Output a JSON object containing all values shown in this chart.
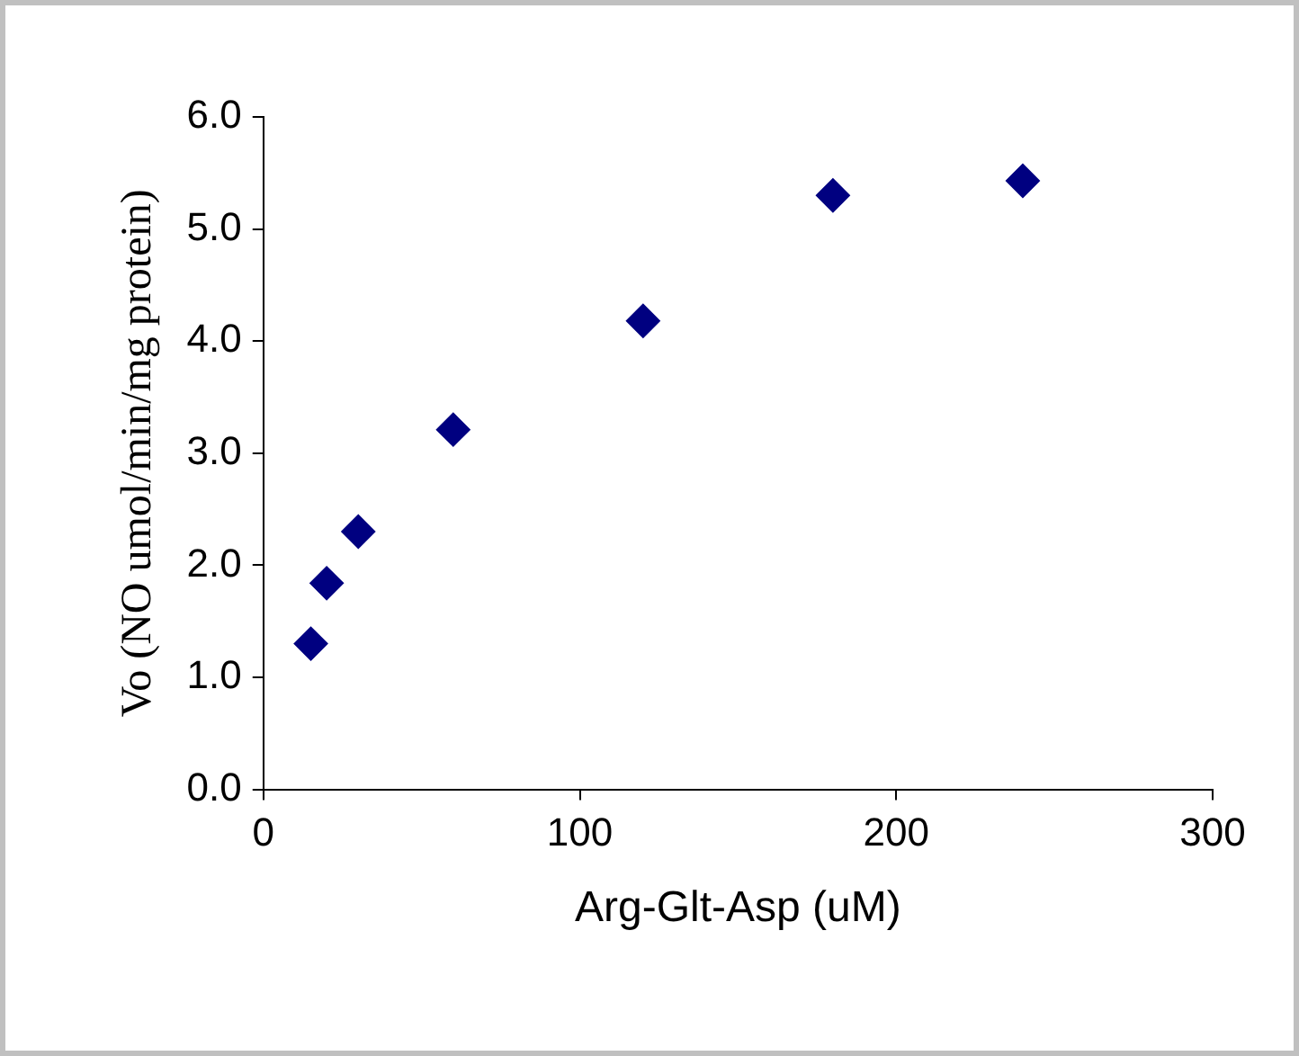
{
  "chart_data": {
    "type": "scatter",
    "xlabel": "Arg-Glt-Asp (uM)",
    "ylabel": "Vo (NO umol/min/mg protein)",
    "x": [
      15,
      20,
      30,
      60,
      120,
      180,
      240
    ],
    "series": [
      {
        "color": "#000080",
        "values": [
          1.3,
          1.84,
          2.3,
          3.21,
          4.18,
          5.3,
          5.43
        ]
      }
    ],
    "xlim": [
      0,
      300
    ],
    "xticks": [
      0,
      100,
      200,
      300
    ],
    "ylim": [
      0,
      6
    ],
    "yticks": [
      {
        "value": 0,
        "label": "0.0"
      },
      {
        "value": 1,
        "label": "1.0"
      },
      {
        "value": 2,
        "label": "2.0"
      },
      {
        "value": 3,
        "label": "3.0"
      },
      {
        "value": 4,
        "label": "4.0"
      },
      {
        "value": 5,
        "label": "5.0"
      },
      {
        "value": 6,
        "label": "6.0"
      }
    ],
    "grid": false,
    "legend": false,
    "marker": "diamond"
  }
}
